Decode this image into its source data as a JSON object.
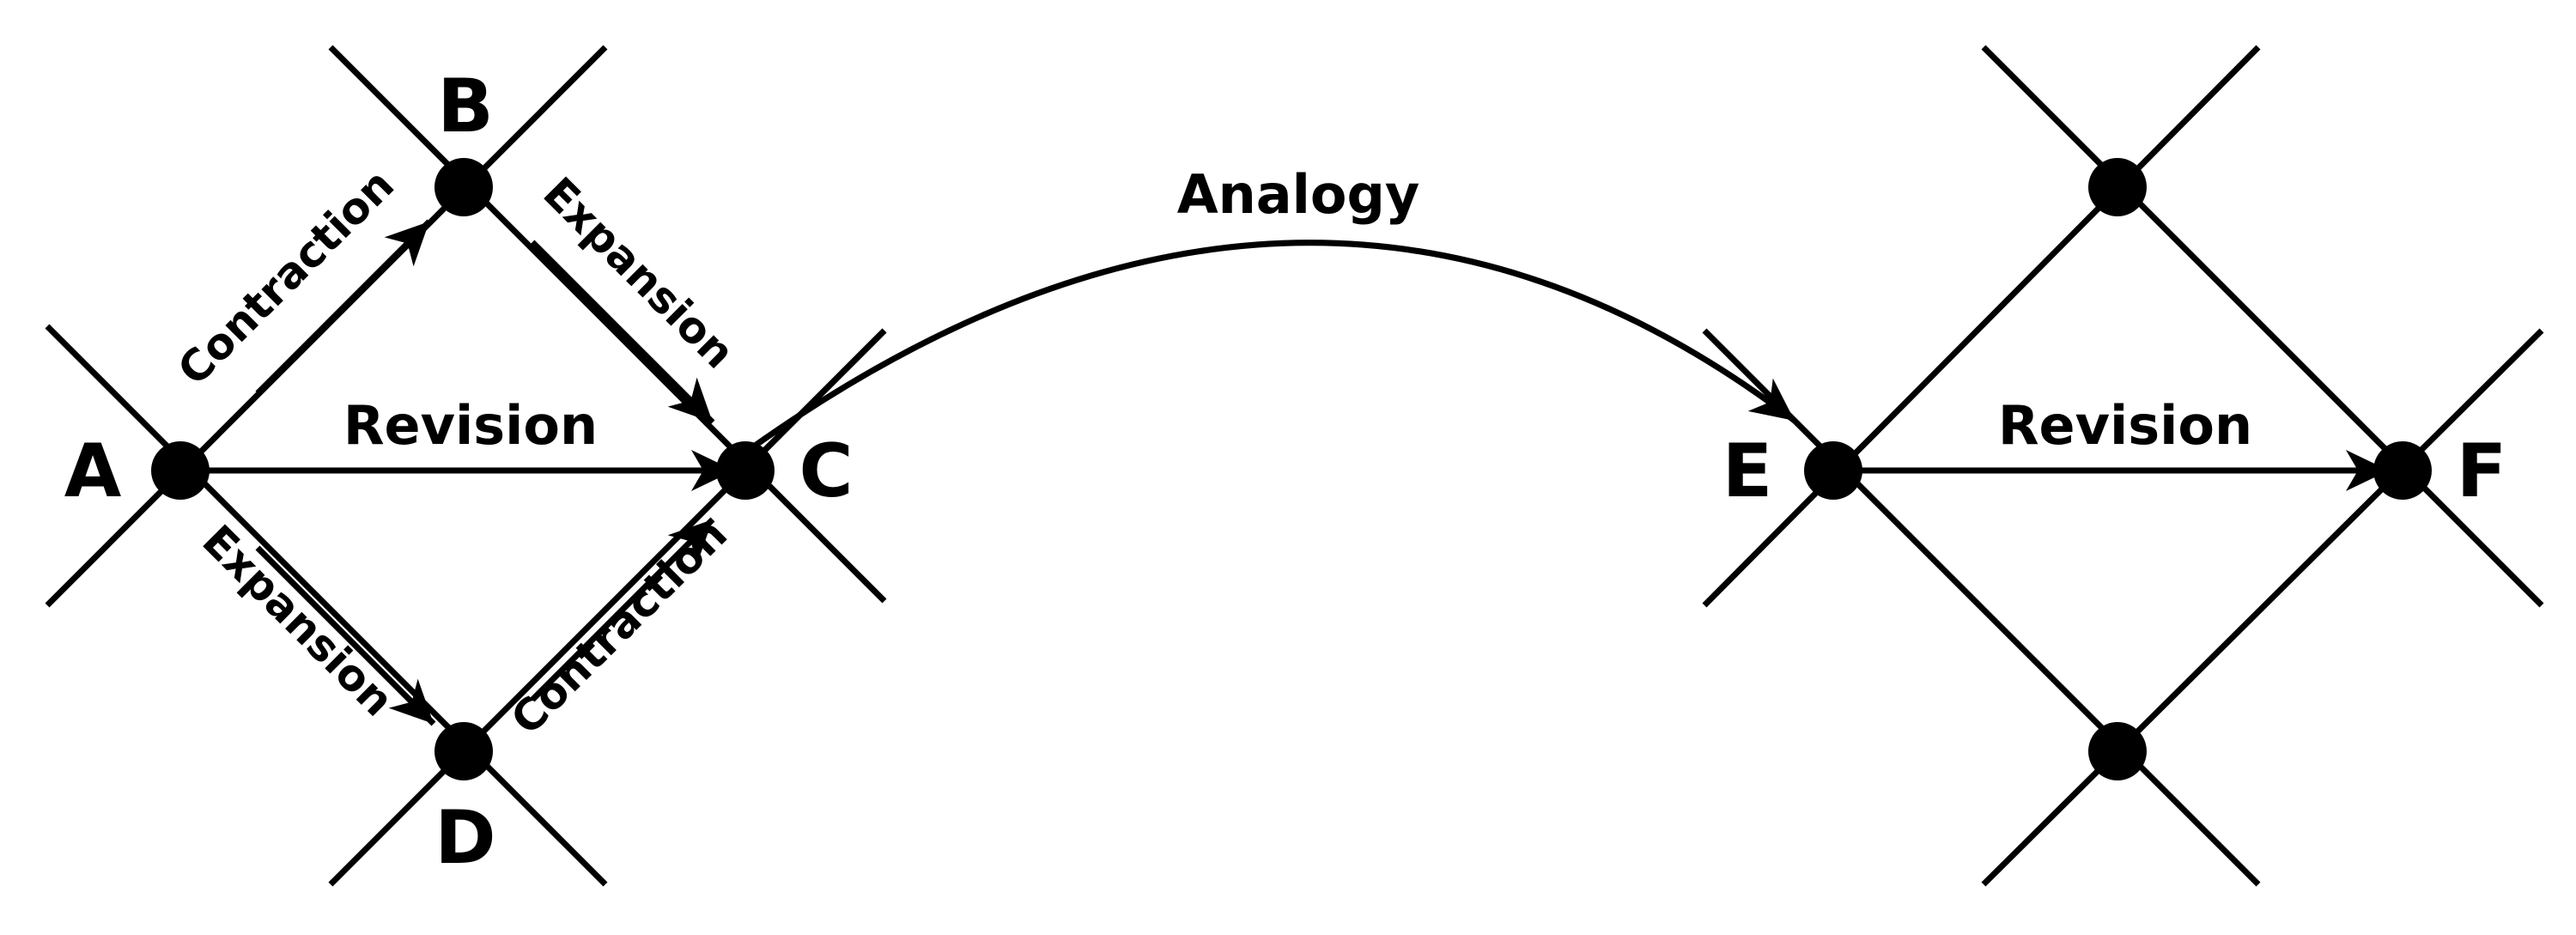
{
  "nodes": {
    "A": "A",
    "B": "B",
    "C": "C",
    "D": "D",
    "E": "E",
    "F": "F"
  },
  "edges": {
    "a_b": "Contraction",
    "b_c": "Expansion",
    "a_c": "Revision",
    "a_d": "Expansion",
    "d_c": "Contraction",
    "c_e": "Analogy",
    "e_f": "Revision"
  },
  "colors": {
    "ink": "#000000",
    "background": "#ffffff"
  }
}
